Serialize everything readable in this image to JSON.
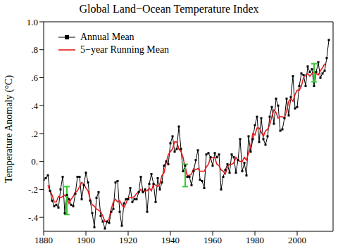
{
  "chart_data": {
    "type": "line",
    "title": "Global Land−Ocean Temperature Index",
    "y_label": "Temperature Anomaly (°C)",
    "x": [
      1880,
      1881,
      1882,
      1883,
      1884,
      1885,
      1886,
      1887,
      1888,
      1889,
      1890,
      1891,
      1892,
      1893,
      1894,
      1895,
      1896,
      1897,
      1898,
      1899,
      1900,
      1901,
      1902,
      1903,
      1904,
      1905,
      1906,
      1907,
      1908,
      1909,
      1910,
      1911,
      1912,
      1913,
      1914,
      1915,
      1916,
      1917,
      1918,
      1919,
      1920,
      1921,
      1922,
      1923,
      1924,
      1925,
      1926,
      1927,
      1928,
      1929,
      1930,
      1931,
      1932,
      1933,
      1934,
      1935,
      1936,
      1937,
      1938,
      1939,
      1940,
      1941,
      1942,
      1943,
      1944,
      1945,
      1946,
      1947,
      1948,
      1949,
      1950,
      1951,
      1952,
      1953,
      1954,
      1955,
      1956,
      1957,
      1958,
      1959,
      1960,
      1961,
      1962,
      1963,
      1964,
      1965,
      1966,
      1967,
      1968,
      1969,
      1970,
      1971,
      1972,
      1973,
      1974,
      1975,
      1976,
      1977,
      1978,
      1979,
      1980,
      1981,
      1982,
      1983,
      1984,
      1985,
      1986,
      1987,
      1988,
      1989,
      1990,
      1991,
      1992,
      1993,
      1994,
      1995,
      1996,
      1997,
      1998,
      1999,
      2000,
      2001,
      2002,
      2003,
      2004,
      2005,
      2006,
      2007,
      2008,
      2009,
      2010,
      2011,
      2012,
      2013,
      2014,
      2015
    ],
    "series": [
      {
        "name": "Annual Mean",
        "color": "#000000",
        "marker": "square",
        "line_style": "solid",
        "values": [
          -0.13,
          -0.12,
          -0.1,
          -0.21,
          -0.28,
          -0.32,
          -0.31,
          -0.33,
          -0.2,
          -0.11,
          -0.37,
          -0.24,
          -0.27,
          -0.31,
          -0.32,
          -0.23,
          -0.11,
          -0.11,
          -0.27,
          -0.17,
          -0.08,
          -0.15,
          -0.28,
          -0.37,
          -0.47,
          -0.26,
          -0.22,
          -0.39,
          -0.43,
          -0.48,
          -0.43,
          -0.44,
          -0.36,
          -0.34,
          -0.15,
          -0.14,
          -0.36,
          -0.46,
          -0.3,
          -0.27,
          -0.27,
          -0.19,
          -0.29,
          -0.27,
          -0.27,
          -0.22,
          -0.11,
          -0.22,
          -0.2,
          -0.36,
          -0.16,
          -0.09,
          -0.16,
          -0.29,
          -0.12,
          -0.2,
          -0.15,
          -0.03,
          0.0,
          -0.02,
          0.13,
          0.18,
          0.07,
          0.09,
          0.25,
          0.09,
          -0.07,
          -0.03,
          -0.11,
          -0.11,
          -0.17,
          -0.07,
          0.01,
          0.08,
          -0.13,
          -0.14,
          -0.19,
          0.05,
          0.06,
          0.03,
          -0.03,
          0.06,
          0.03,
          0.05,
          -0.2,
          -0.11,
          -0.06,
          -0.02,
          -0.08,
          0.05,
          0.03,
          -0.08,
          0.01,
          0.16,
          -0.07,
          -0.01,
          -0.1,
          0.18,
          0.07,
          0.16,
          0.26,
          0.32,
          0.14,
          0.31,
          0.16,
          0.12,
          0.18,
          0.32,
          0.39,
          0.27,
          0.45,
          0.4,
          0.22,
          0.23,
          0.31,
          0.45,
          0.33,
          0.46,
          0.61,
          0.38,
          0.39,
          0.54,
          0.63,
          0.62,
          0.54,
          0.68,
          0.64,
          0.66,
          0.54,
          0.64,
          0.71,
          0.6,
          0.63,
          0.65,
          0.74,
          0.87
        ]
      },
      {
        "name": "5−year Running Mean",
        "color": "#e41a1c",
        "marker": "none",
        "line_style": "solid",
        "values": [
          null,
          null,
          -0.17,
          -0.21,
          -0.24,
          -0.29,
          -0.29,
          -0.25,
          -0.26,
          -0.25,
          -0.24,
          -0.26,
          -0.3,
          -0.27,
          -0.25,
          -0.22,
          -0.21,
          -0.18,
          -0.15,
          -0.16,
          -0.19,
          -0.21,
          -0.27,
          -0.31,
          -0.32,
          -0.34,
          -0.35,
          -0.36,
          -0.39,
          -0.43,
          -0.43,
          -0.41,
          -0.34,
          -0.29,
          -0.27,
          -0.29,
          -0.28,
          -0.31,
          -0.33,
          -0.3,
          -0.26,
          -0.26,
          -0.26,
          -0.25,
          -0.23,
          -0.22,
          -0.2,
          -0.22,
          -0.21,
          -0.21,
          -0.19,
          -0.21,
          -0.16,
          -0.17,
          -0.18,
          -0.16,
          -0.1,
          -0.08,
          -0.01,
          0.05,
          0.07,
          0.09,
          0.14,
          0.14,
          0.09,
          0.07,
          0.03,
          -0.05,
          -0.1,
          -0.1,
          -0.09,
          -0.05,
          -0.06,
          -0.05,
          -0.07,
          -0.07,
          -0.07,
          -0.04,
          -0.02,
          0.03,
          0.03,
          0.03,
          -0.02,
          -0.03,
          -0.06,
          -0.07,
          -0.09,
          -0.04,
          -0.02,
          -0.02,
          -0.01,
          0.03,
          0.01,
          0.0,
          0.0,
          0.03,
          0.01,
          0.06,
          0.11,
          0.2,
          0.19,
          0.24,
          0.24,
          0.21,
          0.18,
          0.22,
          0.23,
          0.26,
          0.32,
          0.37,
          0.35,
          0.31,
          0.32,
          0.32,
          0.31,
          0.36,
          0.43,
          0.45,
          0.43,
          0.48,
          0.51,
          0.51,
          0.54,
          0.6,
          0.62,
          0.63,
          0.61,
          0.63,
          0.64,
          0.63,
          0.62,
          0.65,
          0.67,
          0.7,
          null,
          null
        ]
      }
    ],
    "xlim": [
      1880,
      2017
    ],
    "xticks": [
      1880,
      1900,
      1920,
      1940,
      1960,
      1980,
      2000
    ],
    "ylim": [
      -0.5,
      1.0
    ],
    "yticks": [
      {
        "value": -0.4,
        "label": "-.4"
      },
      {
        "value": -0.2,
        "label": "-.2"
      },
      {
        "value": 0,
        "label": "0."
      },
      {
        "value": 0.2,
        "label": ".2"
      },
      {
        "value": 0.4,
        "label": ".4"
      },
      {
        "value": 0.6,
        "label": ".6"
      },
      {
        "value": 0.8,
        "label": ".8"
      },
      {
        "value": 1.0,
        "label": "1.0"
      }
    ],
    "legend": "upper left",
    "error_bars": [
      {
        "x": 1891,
        "low": -0.38,
        "high": -0.18,
        "color": "#33cc33"
      },
      {
        "x": 1947,
        "low": -0.18,
        "high": -0.02,
        "color": "#33cc33"
      },
      {
        "x": 2008,
        "low": 0.57,
        "high": 0.7,
        "color": "#33cc33"
      }
    ]
  }
}
